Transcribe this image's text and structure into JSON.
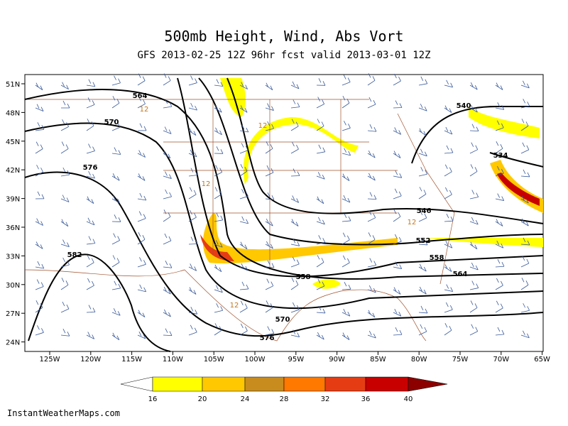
{
  "header": {
    "title": "500mb Height, Wind, Abs Vort",
    "subtitle": "GFS 2013-02-25 12Z 96hr fcst valid 2013-03-01 12Z"
  },
  "map": {
    "lat_labels": [
      "51N",
      "48N",
      "45N",
      "42N",
      "39N",
      "36N",
      "33N",
      "30N",
      "27N",
      "24N"
    ],
    "lon_labels": [
      "125W",
      "120W",
      "115W",
      "110W",
      "105W",
      "100W",
      "95W",
      "90W",
      "85W",
      "80W",
      "75W",
      "70W",
      "65W"
    ],
    "contour_labels": [
      "564",
      "570",
      "576",
      "582",
      "540",
      "534",
      "546",
      "552",
      "558",
      "558",
      "564",
      "570",
      "576",
      "12",
      "12",
      "12",
      "12",
      "12"
    ]
  },
  "colorbar": {
    "labels": [
      16,
      20,
      24,
      28,
      32,
      36,
      40
    ],
    "colors": [
      "#ffffff",
      "#ffff00",
      "#ffc800",
      "#c88c1e",
      "#ff7800",
      "#e63c14",
      "#c80000",
      "#8c0000"
    ]
  },
  "footer": {
    "source": "InstantWeatherMaps.com"
  }
}
